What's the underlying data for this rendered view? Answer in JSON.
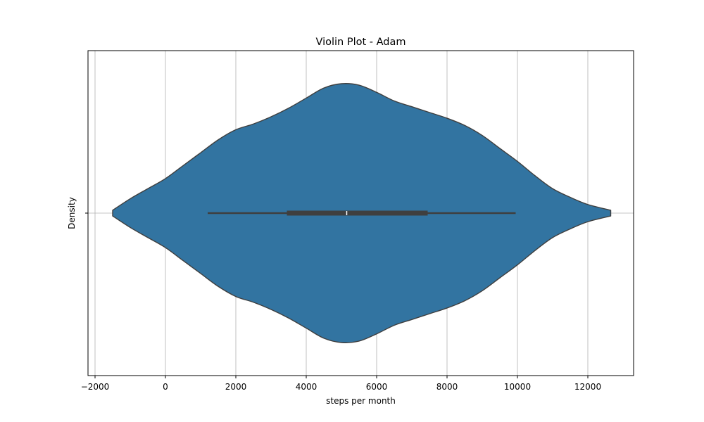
{
  "chart_data": {
    "type": "violin",
    "title": "Violin Plot - Adam",
    "xlabel": "steps per month",
    "ylabel": "Density",
    "xlim": [
      -2200,
      13300
    ],
    "xticks": [
      -2000,
      0,
      2000,
      4000,
      6000,
      8000,
      10000,
      12000
    ],
    "xtick_labels": [
      "−2000",
      "0",
      "2000",
      "4000",
      "6000",
      "8000",
      "10000",
      "12000"
    ],
    "grid": true,
    "orientation": "horizontal",
    "color": "#3274a1",
    "edge_color": "#3f3f3f",
    "box_color": "#3f3f3f",
    "median_color": "#ffffff",
    "violin": {
      "support_min": -1500,
      "support_max": 12650,
      "density_profile": [
        {
          "x": -1500,
          "d": 0.02
        },
        {
          "x": -1000,
          "d": 0.1
        },
        {
          "x": -500,
          "d": 0.17
        },
        {
          "x": 0,
          "d": 0.24
        },
        {
          "x": 500,
          "d": 0.33
        },
        {
          "x": 1000,
          "d": 0.42
        },
        {
          "x": 1500,
          "d": 0.51
        },
        {
          "x": 2000,
          "d": 0.58
        },
        {
          "x": 2500,
          "d": 0.62
        },
        {
          "x": 3000,
          "d": 0.67
        },
        {
          "x": 3500,
          "d": 0.73
        },
        {
          "x": 4000,
          "d": 0.8
        },
        {
          "x": 4500,
          "d": 0.87
        },
        {
          "x": 5000,
          "d": 0.9
        },
        {
          "x": 5500,
          "d": 0.89
        },
        {
          "x": 6000,
          "d": 0.84
        },
        {
          "x": 6500,
          "d": 0.78
        },
        {
          "x": 7000,
          "d": 0.74
        },
        {
          "x": 7500,
          "d": 0.7
        },
        {
          "x": 8000,
          "d": 0.66
        },
        {
          "x": 8500,
          "d": 0.61
        },
        {
          "x": 9000,
          "d": 0.54
        },
        {
          "x": 9500,
          "d": 0.45
        },
        {
          "x": 10000,
          "d": 0.36
        },
        {
          "x": 10500,
          "d": 0.26
        },
        {
          "x": 11000,
          "d": 0.17
        },
        {
          "x": 11500,
          "d": 0.11
        },
        {
          "x": 12000,
          "d": 0.06
        },
        {
          "x": 12650,
          "d": 0.02
        }
      ]
    },
    "box": {
      "whisker_low": 1200,
      "q1": 3450,
      "median": 5150,
      "q3": 7450,
      "whisker_high": 9950
    }
  }
}
